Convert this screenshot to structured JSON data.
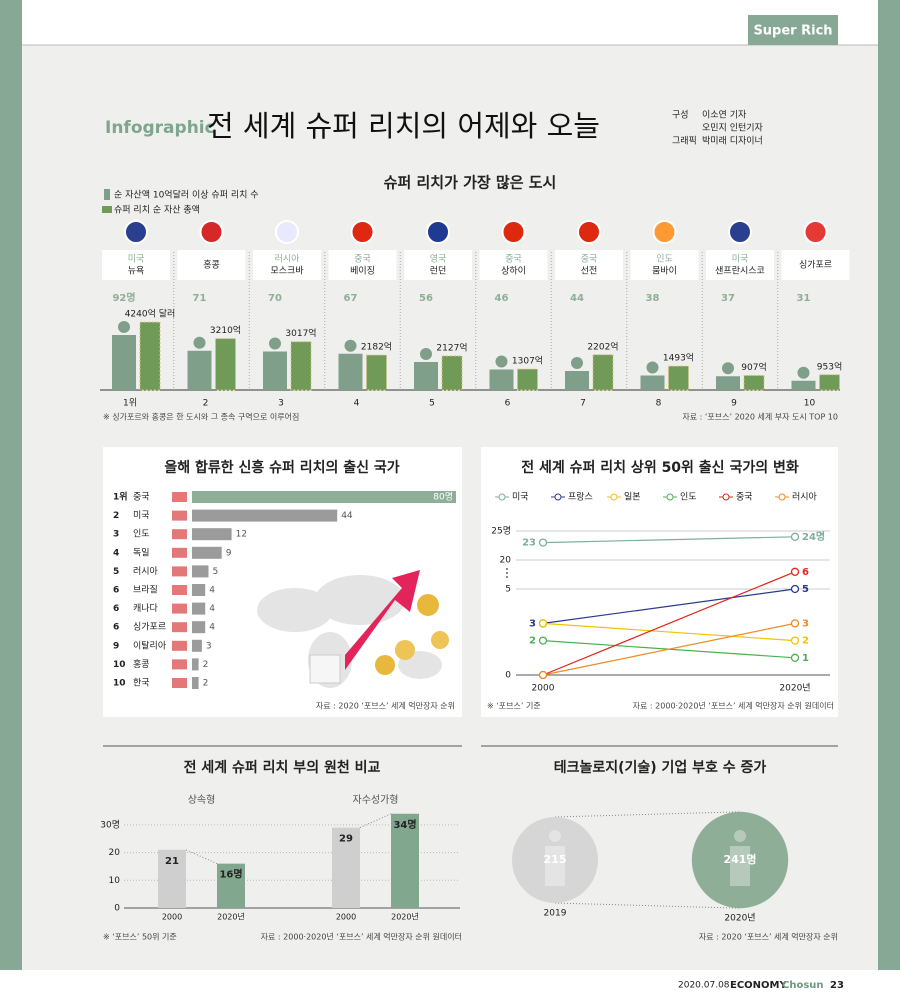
{
  "header": {
    "tab": "Super Rich",
    "kicker": "Infographic",
    "title": "전 세계 슈퍼 리치의 어제와 오늘",
    "credits": [
      {
        "role": "구성",
        "names": [
          "이소연 기자",
          "오민지 인턴기자"
        ]
      },
      {
        "role": "그래픽",
        "names": [
          "박미래 디자이너"
        ]
      }
    ]
  },
  "chart_data": [
    {
      "type": "pictogram",
      "title": "슈퍼 리치가 가장 많은 도시",
      "categories": [
        "1위",
        "2",
        "3",
        "4",
        "5",
        "6",
        "7",
        "8",
        "9",
        "10"
      ],
      "countries": [
        "미국",
        null,
        "러시아",
        "중국",
        "영국",
        "중국",
        "중국",
        "인도",
        "미국",
        null
      ],
      "cities": [
        "뉴욕",
        "홍콩",
        "모스크바",
        "베이징",
        "런던",
        "상하이",
        "선전",
        "뭄바이",
        "샌프란시스코",
        "싱가포르"
      ],
      "series": [
        {
          "name": "순 자산액 10억달러 이상 슈퍼 리치 수",
          "color": "#7f9f8b",
          "values": [
            92,
            71,
            70,
            67,
            56,
            46,
            44,
            38,
            37,
            31
          ],
          "value_labels": [
            "92명",
            "71",
            "70",
            "67",
            "56",
            "46",
            "44",
            "38",
            "37",
            "31"
          ]
        },
        {
          "name": "슈퍼 리치 순 자산 총액",
          "color": "#6f9a58",
          "values": [
            4240,
            3210,
            3017,
            2182,
            2127,
            1307,
            2202,
            1493,
            907,
            953
          ],
          "value_labels": [
            "4240억 달러",
            "3210억",
            "3017억",
            "2182억",
            "2127억",
            "1307억",
            "2202억",
            "1493억",
            "907억",
            "953억"
          ]
        }
      ],
      "note": "※ 싱가포르와 홍콩은 한 도시와 그 종속 구역으로 이루어짐",
      "source": "자료 : ‘포브스’ 2020 세계 부자 도시 TOP 10"
    },
    {
      "type": "hbar",
      "title": "올해 합류한 신흥 슈퍼 리치의 출신 국가",
      "ranks": [
        "1위",
        "2",
        "3",
        "4",
        "5",
        "6",
        "6",
        "6",
        "9",
        "10",
        "10"
      ],
      "categories": [
        "중국",
        "미국",
        "인도",
        "독일",
        "러시아",
        "브라질",
        "캐나다",
        "싱가포르",
        "이탈리아",
        "홍콩",
        "한국"
      ],
      "values": [
        80,
        44,
        12,
        9,
        5,
        4,
        4,
        4,
        3,
        2,
        2
      ],
      "value_labels": [
        "80명",
        "44",
        "12",
        "9",
        "5",
        "4",
        "4",
        "4",
        "3",
        "2",
        "2"
      ],
      "color": "#9b9b9b",
      "highlight_color": "#8fae98",
      "source": "자료 : 2020 ‘포브스’ 세계 억만장자 순위"
    },
    {
      "type": "line",
      "title": "전 세계 슈퍼 리치 상위 50위 출신 국가의 변화",
      "x": [
        "2000",
        "2020년"
      ],
      "series": [
        {
          "name": "미국",
          "color": "#7fae9a",
          "values": [
            23,
            24
          ],
          "value_labels": [
            "23",
            "24명"
          ]
        },
        {
          "name": "프랑스",
          "color": "#2b3990",
          "values": [
            3,
            5
          ],
          "value_labels": [
            "3",
            "5"
          ]
        },
        {
          "name": "일본",
          "color": "#f0c400",
          "values": [
            3,
            2
          ],
          "value_labels": [
            null,
            "2"
          ]
        },
        {
          "name": "인도",
          "color": "#4caf50",
          "values": [
            2,
            1
          ],
          "value_labels": [
            "2",
            "1"
          ]
        },
        {
          "name": "중국",
          "color": "#e2231a",
          "values": [
            0,
            6
          ],
          "value_labels": [
            null,
            "6"
          ]
        },
        {
          "name": "러시아",
          "color": "#f08a24",
          "values": [
            0,
            3
          ],
          "value_labels": [
            null,
            "3"
          ]
        }
      ],
      "ylim": [
        0,
        25
      ],
      "yticks": [
        0,
        5,
        20,
        {
          "value": 25,
          "label": "25명"
        }
      ],
      "y_axis_break": true,
      "grid": true,
      "note": "※ ‘포브스’ 기준",
      "source": "자료 : 2000·2020년 ‘포브스’ 세계 억만장자 순위 원데이터"
    },
    {
      "type": "grouped_bar",
      "title": "전 세계 슈퍼 리치 부의 원천 비교",
      "groups": [
        {
          "name": "상속형",
          "categories": [
            "2000",
            "2020년"
          ],
          "values": [
            21,
            16
          ],
          "value_labels": [
            "21",
            "16명"
          ]
        },
        {
          "name": "자수성가형",
          "categories": [
            "2000",
            "2020년"
          ],
          "values": [
            29,
            34
          ],
          "value_labels": [
            "29",
            "34명"
          ]
        }
      ],
      "colors": [
        "#cfcfcf",
        "#82a78f"
      ],
      "ylim": [
        0,
        35
      ],
      "yticks": [
        0,
        10,
        20,
        {
          "value": 30,
          "label": "30명"
        }
      ],
      "grid": true,
      "note": "※ ‘포브스’ 50위 기준",
      "source": "자료 : 2000·2020년 ‘포브스’ 세계 억만장자 순위 원데이터"
    },
    {
      "type": "bubble",
      "title": "테크놀로지(기술) 기업 부호 수 증가",
      "categories": [
        "2019",
        "2020년"
      ],
      "values": [
        215,
        241
      ],
      "value_labels": [
        "215",
        "241명"
      ],
      "colors": [
        "#d6d6d6",
        "#8fae98"
      ],
      "source": "자료 : 2020 ‘포브스’ 세계 억만장자 순위"
    }
  ],
  "footer": {
    "date": "2020.07.08",
    "brand": "ECONOMY",
    "brand_accent": "Chosun",
    "page": "23"
  }
}
